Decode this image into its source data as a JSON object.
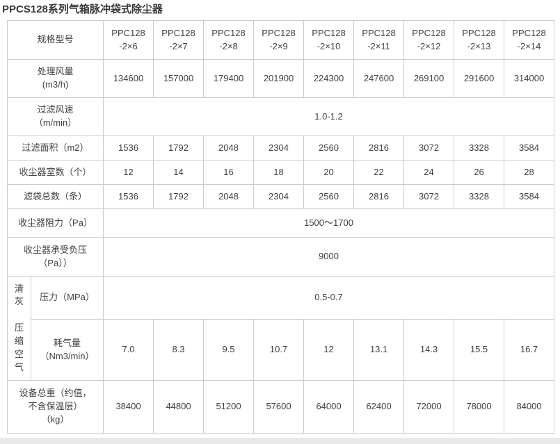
{
  "title": "PPCS128系列气箱脉冲袋式除尘器",
  "table": {
    "spec_label": "规格型号",
    "models": [
      "PPC128\n-2×6",
      "PPC128\n-2×7",
      "PPC128\n-2×8",
      "PPC128\n-2×9",
      "PPC128\n-2×10",
      "PPC128\n-2×11",
      "PPC128\n-2×12",
      "PPC128\n-2×13",
      "PPC128\n-2×14"
    ],
    "rows": {
      "airflow": {
        "label": "处理风量\n(m3/h)",
        "values": [
          "134600",
          "157000",
          "179400",
          "201900",
          "224300",
          "247600",
          "269100",
          "291600",
          "314000"
        ]
      },
      "velocity": {
        "label": "过滤风速\n（m/min）",
        "value": "1.0-1.2"
      },
      "area": {
        "label": "过滤面积（m2）",
        "values": [
          "1536",
          "1792",
          "2048",
          "2304",
          "2560",
          "2816",
          "3072",
          "3328",
          "3584"
        ]
      },
      "chambers": {
        "label": "收尘器室数（个）",
        "values": [
          "12",
          "14",
          "16",
          "18",
          "20",
          "22",
          "24",
          "26",
          "28"
        ]
      },
      "bags": {
        "label": "滤袋总数（条）",
        "values": [
          "1536",
          "1792",
          "2048",
          "2304",
          "2560",
          "2816",
          "3072",
          "3328",
          "3584"
        ]
      },
      "resistance": {
        "label": "收尘器阻力（Pa）",
        "value": "1500～1700"
      },
      "negative_pressure": {
        "label": "收尘器承受负压\n（Pa））",
        "value": "9000"
      },
      "cleaning": {
        "vertical_label": "清\n灰\n\n压\n缩\n空\n气",
        "pressure": {
          "label": "压力（MPa）",
          "value": "0.5-0.7"
        },
        "consumption": {
          "label": "耗气量\n（Nm3/min）",
          "values": [
            "7.0",
            "8.3",
            "9.5",
            "10.7",
            "12",
            "13.1",
            "14.3",
            "15.5",
            "16.7"
          ]
        }
      },
      "weight": {
        "label": "设备总重（约值，\n不含保温层）\n（kg）",
        "values": [
          "38400",
          "44800",
          "51200",
          "57600",
          "64000",
          "62400",
          "72000",
          "78000",
          "84000"
        ]
      }
    }
  }
}
